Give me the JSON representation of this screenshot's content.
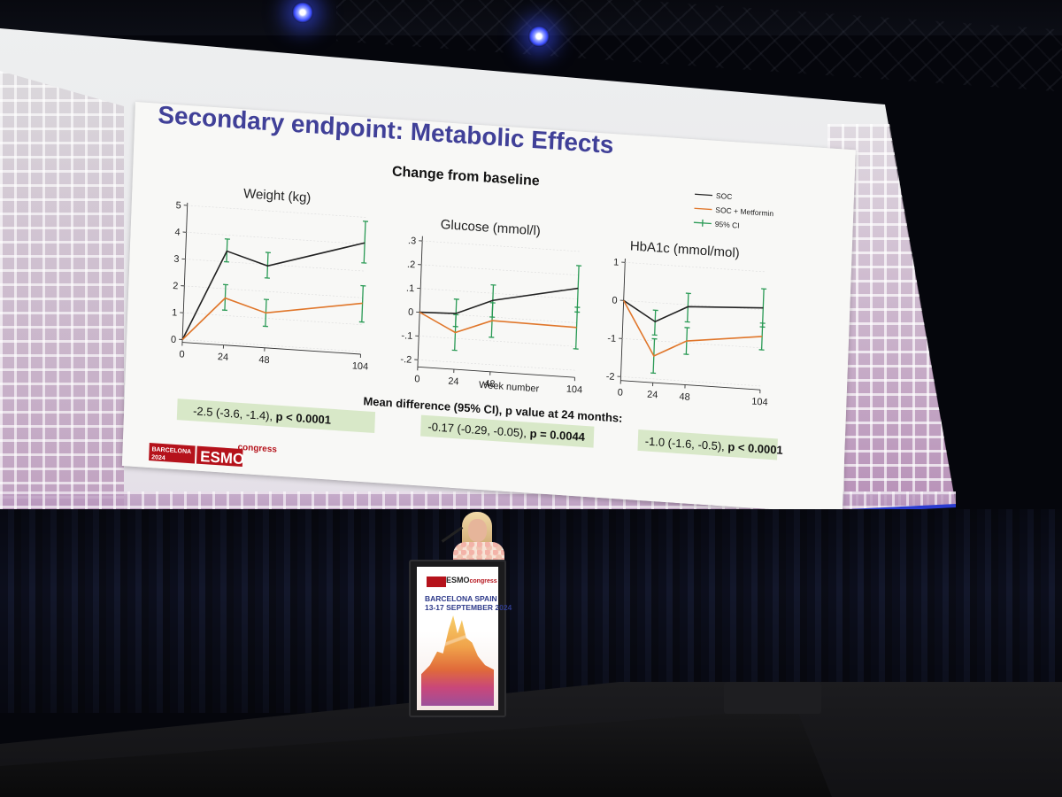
{
  "slide": {
    "title": "Secondary endpoint: Metabolic Effects",
    "subtitle": "Change from baseline",
    "legend": [
      {
        "label": "SOC",
        "color": "#222222",
        "kind": "line"
      },
      {
        "label": "SOC + Metformin",
        "color": "#e0762a",
        "kind": "line"
      },
      {
        "label": "95% CI",
        "color": "#2a9a55",
        "kind": "errorbar"
      }
    ],
    "x_label": "Week number",
    "mean_difference_title": "Mean difference (95% CI), p value at 24 months:",
    "mean_differences": [
      {
        "estimate": "-2.5 (-3.6, -1.4), ",
        "p": "p < 0.0001"
      },
      {
        "estimate": "-0.17 (-0.29, -0.05), ",
        "p": "p = 0.0044"
      },
      {
        "estimate": "-1.0 (-1.6, -0.5), ",
        "p": "p < 0.0001"
      }
    ],
    "logo": {
      "city": "BARCELONA",
      "year": "2024",
      "brand": "ESMO",
      "suffix": "congress"
    }
  },
  "colors": {
    "soc": "#222222",
    "metformin": "#e0762a",
    "ci": "#2a9a55",
    "badge": "#d8e8c8",
    "title": "#404098"
  },
  "podium": {
    "brand": "ESMO",
    "suffix": "congress",
    "location": "BARCELONA SPAIN",
    "dates": "13-17 SEPTEMBER 2024"
  },
  "chart_data": [
    {
      "type": "line",
      "title": "Weight (kg)",
      "xlabel": "",
      "x_ticks": [
        "0",
        "24",
        "48",
        "104"
      ],
      "y_ticks": [
        "0",
        "1",
        "2",
        "3",
        "4",
        "5"
      ],
      "xlim": [
        0,
        104
      ],
      "ylim": [
        -0.1,
        5.1
      ],
      "series": [
        {
          "name": "SOC",
          "x": [
            0,
            24,
            48,
            104
          ],
          "y": [
            0,
            3.4,
            2.95,
            4.05
          ]
        },
        {
          "name": "SOC + Metformin",
          "x": [
            0,
            24,
            48,
            104
          ],
          "y": [
            0,
            1.65,
            1.2,
            1.8
          ]
        }
      ],
      "ci": [
        {
          "x": 24,
          "low": 3.0,
          "high": 3.85
        },
        {
          "x": 48,
          "low": 2.5,
          "high": 3.45
        },
        {
          "x": 104,
          "low": 3.3,
          "high": 4.85
        },
        {
          "x": 24,
          "low": 1.2,
          "high": 2.15
        },
        {
          "x": 48,
          "low": 0.7,
          "high": 1.7
        },
        {
          "x": 104,
          "low": 1.1,
          "high": 2.45
        }
      ]
    },
    {
      "type": "line",
      "title": "Glucose (mmol/l)",
      "xlabel": "Week number",
      "x_ticks": [
        "0",
        "24",
        "48",
        "104"
      ],
      "y_ticks": [
        "-.2",
        "-.1",
        "0",
        ".1",
        ".2",
        ".3"
      ],
      "xlim": [
        0,
        104
      ],
      "ylim": [
        -0.23,
        0.32
      ],
      "series": [
        {
          "name": "SOC",
          "x": [
            0,
            24,
            48,
            104
          ],
          "y": [
            0,
            0.005,
            0.07,
            0.145
          ]
        },
        {
          "name": "SOC + Metformin",
          "x": [
            0,
            24,
            48,
            104
          ],
          "y": [
            0,
            -0.075,
            -0.015,
            -0.02
          ]
        }
      ],
      "ci": [
        {
          "x": 24,
          "low": -0.05,
          "high": 0.065
        },
        {
          "x": 48,
          "low": 0.0,
          "high": 0.135
        },
        {
          "x": 104,
          "low": 0.045,
          "high": 0.24
        },
        {
          "x": 24,
          "low": -0.15,
          "high": 0.0
        },
        {
          "x": 48,
          "low": -0.085,
          "high": 0.06
        },
        {
          "x": 104,
          "low": -0.11,
          "high": 0.065
        }
      ]
    },
    {
      "type": "line",
      "title": "HbA1c (mmol/mol)",
      "xlabel": "",
      "x_ticks": [
        "0",
        "24",
        "48",
        "104"
      ],
      "y_ticks": [
        "-2",
        "-1",
        "0",
        "1"
      ],
      "xlim": [
        0,
        104
      ],
      "ylim": [
        -2.1,
        1.1
      ],
      "series": [
        {
          "name": "SOC",
          "x": [
            0,
            24,
            48,
            104
          ],
          "y": [
            0,
            -0.5,
            -0.05,
            0.05
          ]
        },
        {
          "name": "SOC + Metformin",
          "x": [
            0,
            24,
            48,
            104
          ],
          "y": [
            0,
            -1.4,
            -0.95,
            -0.7
          ]
        }
      ],
      "ci": [
        {
          "x": 24,
          "low": -0.85,
          "high": -0.2
        },
        {
          "x": 48,
          "low": -0.45,
          "high": 0.3
        },
        {
          "x": 104,
          "low": -0.45,
          "high": 0.55
        },
        {
          "x": 24,
          "low": -1.85,
          "high": -0.95
        },
        {
          "x": 48,
          "low": -1.3,
          "high": -0.6
        },
        {
          "x": 104,
          "low": -1.05,
          "high": -0.35
        }
      ]
    }
  ]
}
